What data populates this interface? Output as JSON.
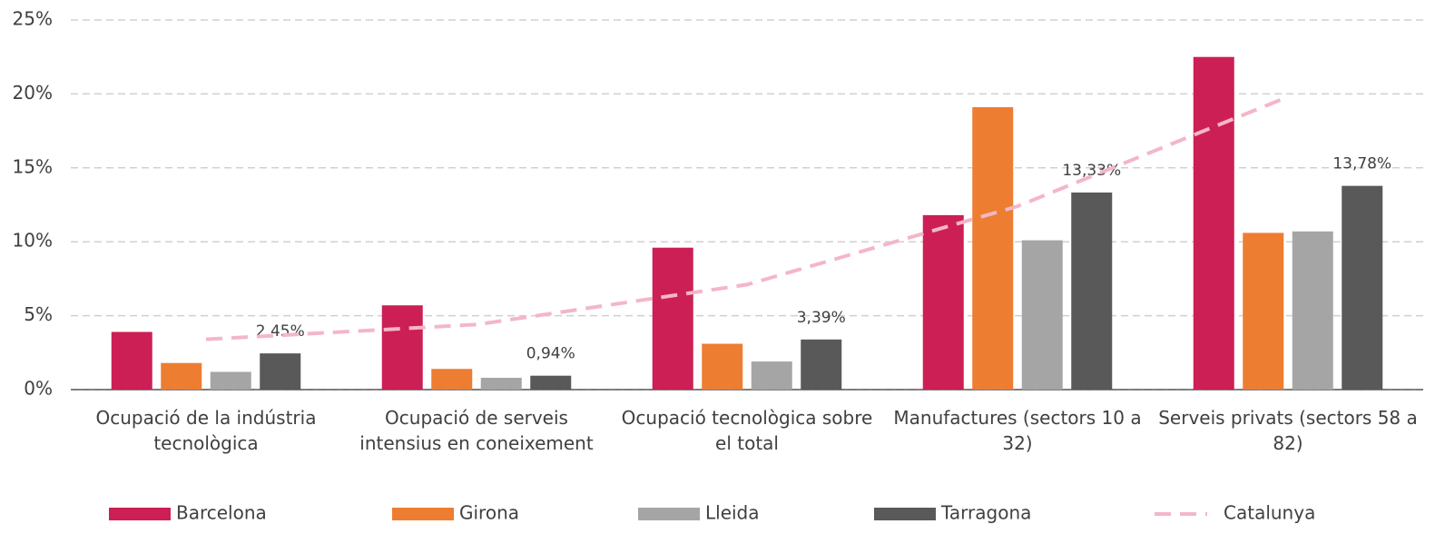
{
  "chart_data": {
    "type": "bar",
    "categories": [
      "Ocupació de la indústria tecnològica",
      "Ocupació de serveis intensius en coneixement",
      "Ocupació tecnològica sobre el total",
      "Manufactures (sectors 10 a 32)",
      "Serveis privats (sectors 58 a 82)"
    ],
    "series": [
      {
        "name": "Barcelona",
        "color": "#cc1f55",
        "values": [
          3.9,
          5.7,
          9.6,
          11.8,
          22.5
        ]
      },
      {
        "name": "Girona",
        "color": "#ed7d31",
        "values": [
          1.8,
          1.4,
          3.1,
          19.1,
          10.6
        ]
      },
      {
        "name": "Lleida",
        "color": "#a5a5a5",
        "values": [
          1.2,
          0.8,
          1.9,
          10.1,
          10.7
        ]
      },
      {
        "name": "Tarragona",
        "color": "#595959",
        "values": [
          2.45,
          0.94,
          3.39,
          13.33,
          13.78
        ],
        "value_labels": [
          "2,45%",
          "0,94%",
          "3,39%",
          "13,33%",
          "13,78%"
        ]
      },
      {
        "name": "Catalunya",
        "type": "line",
        "dashed": true,
        "color": "#f4b6c8",
        "values": [
          3.4,
          4.4,
          7.1,
          12.4,
          19.8
        ]
      }
    ],
    "ylim": [
      0,
      25
    ],
    "yticks": [
      {
        "value": 0,
        "label": "0%"
      },
      {
        "value": 5,
        "label": "5%"
      },
      {
        "value": 10,
        "label": "10%"
      },
      {
        "value": 15,
        "label": "15%"
      },
      {
        "value": 20,
        "label": "20%"
      },
      {
        "value": 25,
        "label": "25%"
      }
    ],
    "grid": true,
    "legend": "bottom"
  }
}
